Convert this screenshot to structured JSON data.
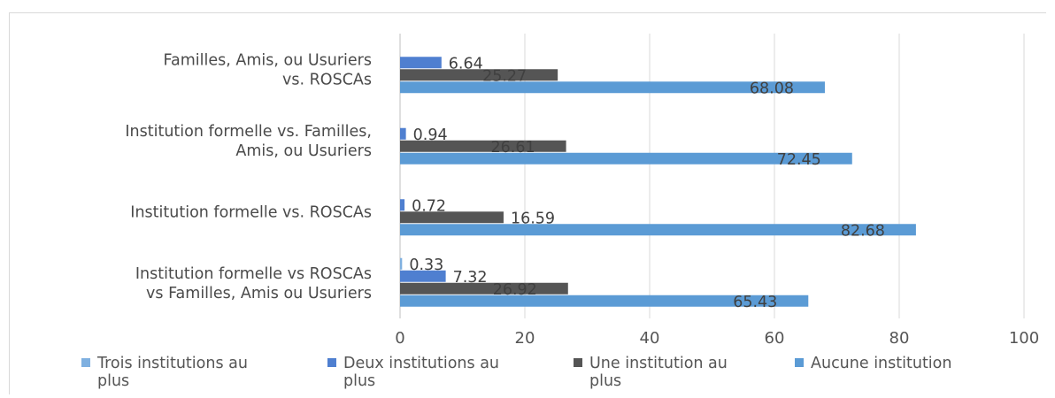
{
  "chart_data": {
    "type": "bar",
    "orientation": "horizontal",
    "title": "",
    "xlabel": "",
    "ylabel": "",
    "xlim": [
      0,
      100
    ],
    "x_ticks": [
      "0",
      "20",
      "40",
      "60",
      "80",
      "100"
    ],
    "grid": true,
    "legend_position": "bottom",
    "categories": [
      [
        "Familles, Amis, ou Usuriers",
        "vs. ROSCAs"
      ],
      [
        "Institution formelle vs. Familles,",
        "Amis, ou Usuriers"
      ],
      [
        "Institution formelle vs. ROSCAs"
      ],
      [
        "Institution formelle vs ROSCAs",
        "vs Familles, Amis ou Usuriers"
      ]
    ],
    "series": [
      {
        "name": [
          "Trois institutions au",
          "plus"
        ],
        "color": "#7fb0e0",
        "values": [
          null,
          null,
          null,
          0.33
        ],
        "labels": [
          "",
          "",
          "",
          "0.33"
        ]
      },
      {
        "name": [
          "Deux institutions au",
          "plus"
        ],
        "color": "#4f7fd0",
        "values": [
          6.64,
          0.94,
          0.72,
          7.32
        ],
        "labels": [
          "6.64",
          "0.94",
          "0.72",
          "7.32"
        ]
      },
      {
        "name": [
          "Une institution au",
          "plus"
        ],
        "color": "#555555",
        "values": [
          25.27,
          26.61,
          16.59,
          26.92
        ],
        "labels": [
          "25.27",
          "26.61",
          "16.59",
          "26.92"
        ]
      },
      {
        "name": [
          "Aucune institution"
        ],
        "color": "#5b9bd5",
        "values": [
          68.08,
          72.45,
          82.68,
          65.43
        ],
        "labels": [
          "68.08",
          "72.45",
          "82.68",
          "65.43"
        ]
      }
    ]
  }
}
